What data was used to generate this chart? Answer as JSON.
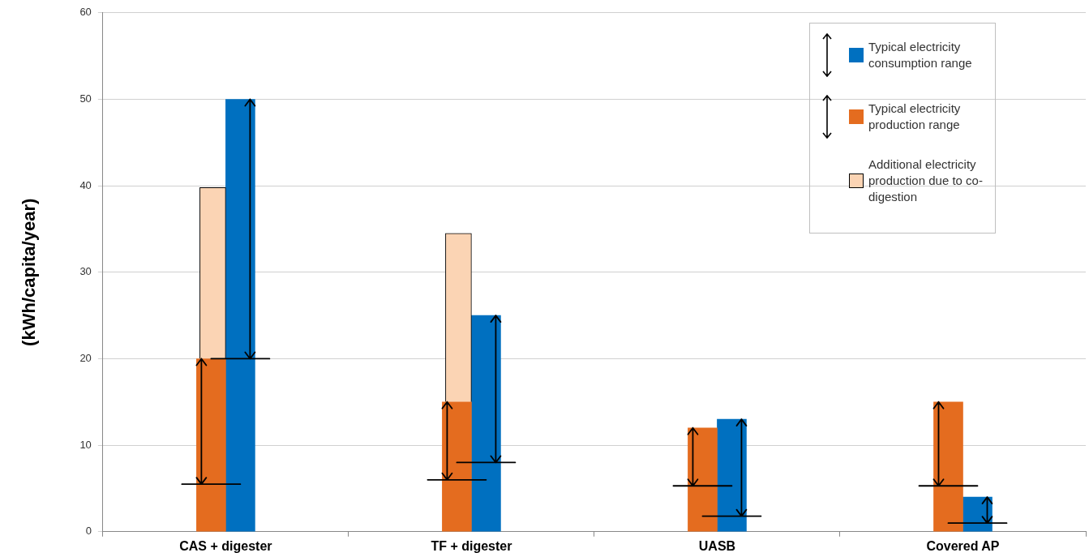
{
  "chart_data": {
    "type": "bar",
    "ylabel": "(kWh/capita/year)",
    "categories": [
      "CAS + digester",
      "TF + digester",
      "UASB",
      "Covered AP"
    ],
    "series": [
      {
        "name": "Typical electricity production range",
        "color": "#e46c1f",
        "values": [
          20,
          15,
          12,
          15
        ],
        "errors": [
          [
            5.5,
            20
          ],
          [
            6,
            15
          ],
          [
            5.3,
            12
          ],
          [
            5.3,
            15
          ]
        ]
      },
      {
        "name": "Additional electricity production due to co-digestion",
        "color": "#fbd4b4",
        "values": [
          19.8,
          19.5,
          null,
          null
        ],
        "base": [
          20,
          15,
          null,
          null
        ]
      },
      {
        "name": "Typical electricity consumption range",
        "color": "#0070c0",
        "values": [
          50,
          25,
          13,
          4
        ],
        "errors": [
          [
            20,
            50
          ],
          [
            8,
            25
          ],
          [
            1.8,
            13
          ],
          [
            1,
            4
          ]
        ]
      }
    ],
    "ylim": [
      0,
      60
    ],
    "yticks": [
      0,
      10,
      20,
      30,
      40,
      50,
      60
    ],
    "grid": "y",
    "legend": "top right"
  }
}
